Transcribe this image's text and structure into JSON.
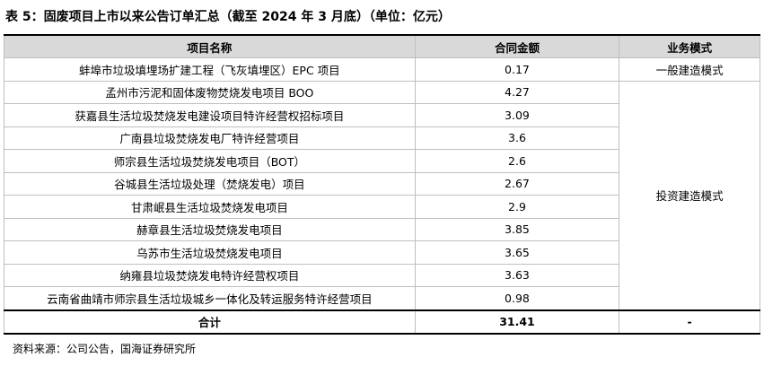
{
  "title": "表 5：固废项目上市以来公告订单汇总（截至 2024 年 3 月底）（单位：亿元）",
  "table": {
    "header": [
      "项目名称",
      "合同金额",
      "业务模式"
    ],
    "rows": [
      [
        "蚌埠市垃圾填埋场扩建工程（飞灰填埋区）EPC 项目",
        "0.17",
        "一般建造模式"
      ],
      [
        "孟州市污泥和固体废物焚烧发电项目 BOO",
        "4.27",
        "投资建造模式"
      ],
      [
        "获嘉县生活垃圾焚烧发电建设项目特许经营权招标项目",
        "3.09"
      ],
      [
        "广南县垃圾焚烧发电厂特许经营项目",
        "3.6"
      ],
      [
        "师宗县生活垃圾焚烧发电项目（BOT）",
        "2.6"
      ],
      [
        "谷城县生活垃圾处理（焚烧发电）项目",
        "2.67"
      ],
      [
        "甘肃岷县生活垃圾焚烧发电项目",
        "2.9"
      ],
      [
        "赫章县生活垃圾焚烧发电项目",
        "3.85"
      ],
      [
        "乌苏市生活垃圾焚烧发电项目",
        "3.65"
      ],
      [
        "纳雍县垃圾焚烧发电特许经营权项目",
        "3.63"
      ],
      [
        "云南省曲靖市师宗县生活垃圾城乡一体化及转运服务特许经营项目",
        "0.98"
      ]
    ],
    "total": [
      "合计",
      "31.41",
      "-"
    ]
  },
  "source": "资料来源：公司公告，国海证券研究所"
}
